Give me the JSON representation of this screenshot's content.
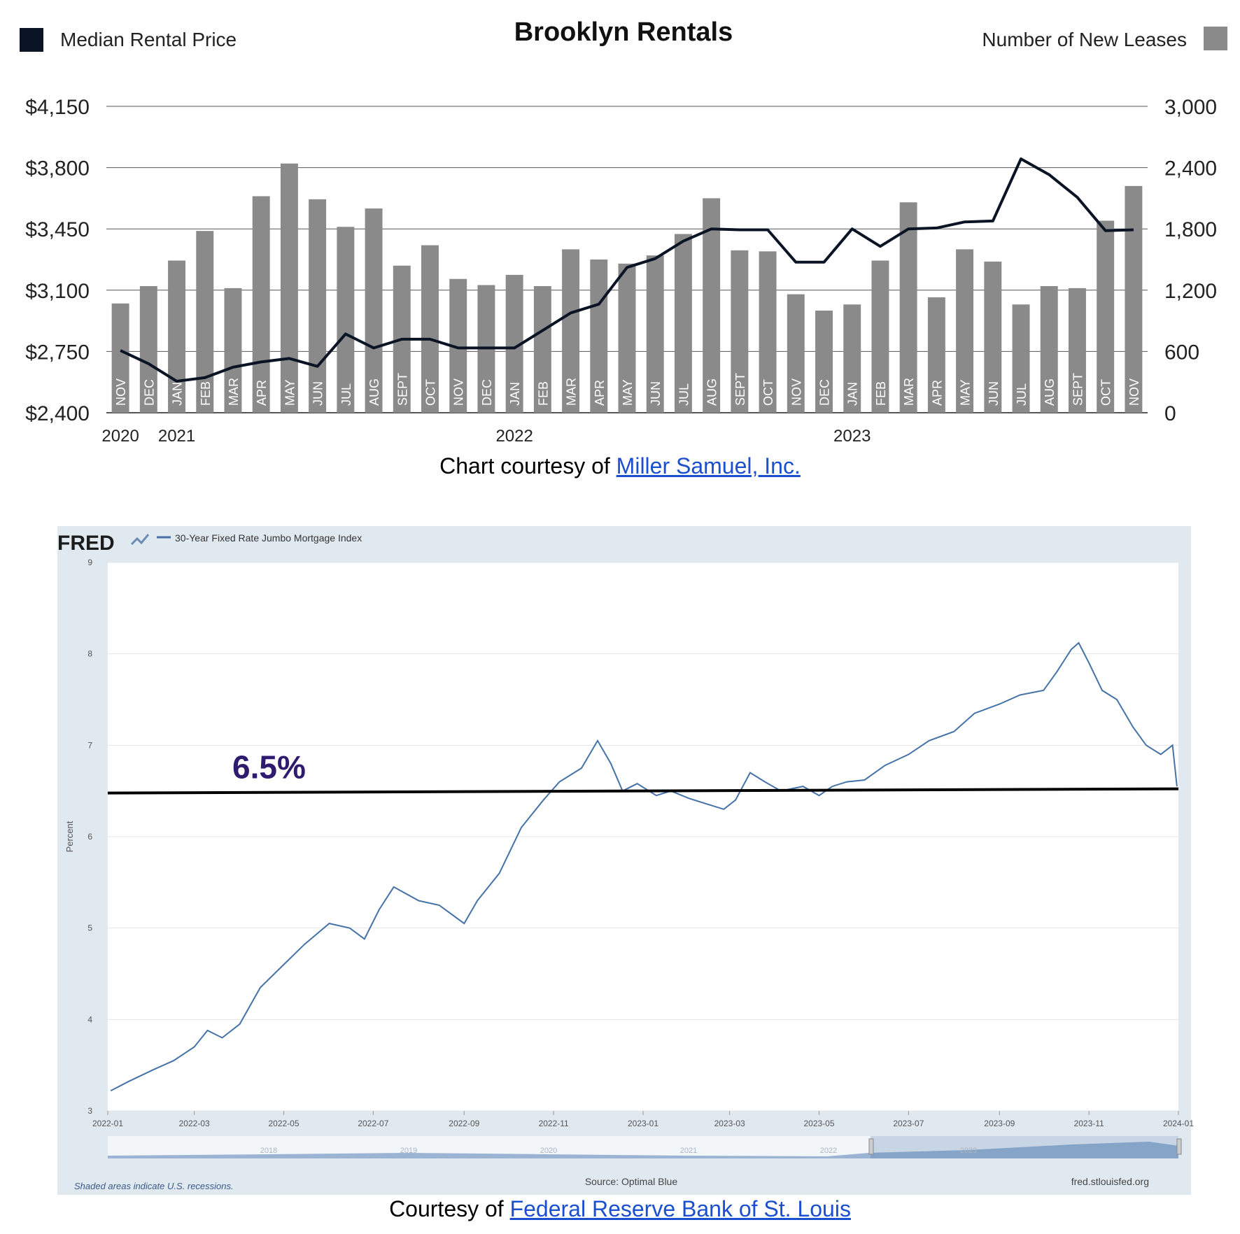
{
  "chart_data": [
    {
      "type": "bar",
      "title": "Brooklyn Rentals",
      "legend": [
        {
          "label": "Median Rental Price",
          "color": "#0b1424",
          "placement": "top-left"
        },
        {
          "label": "Number of New Leases",
          "color": "#8a8a8a",
          "placement": "top-right"
        }
      ],
      "categories": [
        "NOV",
        "DEC",
        "JAN",
        "FEB",
        "MAR",
        "APR",
        "MAY",
        "JUN",
        "JUL",
        "AUG",
        "SEPT",
        "OCT",
        "NOV",
        "DEC",
        "JAN",
        "FEB",
        "MAR",
        "APR",
        "MAY",
        "JUN",
        "JUL",
        "AUG",
        "SEPT",
        "OCT",
        "NOV",
        "DEC",
        "JAN",
        "FEB",
        "MAR",
        "APR",
        "MAY",
        "JUN",
        "JUL",
        "AUG",
        "SEPT",
        "OCT",
        "NOV"
      ],
      "year_labels": [
        {
          "label": "2020",
          "index": 0
        },
        {
          "label": "2021",
          "index": 2
        },
        {
          "label": "2022",
          "index": 14
        },
        {
          "label": "2023",
          "index": 26
        }
      ],
      "left_axis": {
        "ticks": [
          "$2,400",
          "$2,750",
          "$3,100",
          "$3,450",
          "$3,800",
          "$4,150"
        ],
        "min": 2400,
        "max": 4150
      },
      "right_axis": {
        "ticks": [
          "0",
          "600",
          "1,200",
          "1,800",
          "2,400",
          "3,000"
        ],
        "min": 0,
        "max": 3000
      },
      "grid": true,
      "series": [
        {
          "name": "Number of New Leases",
          "kind": "bar",
          "axis": "right",
          "color": "#8a8a8a",
          "values": [
            1070,
            1240,
            1490,
            1780,
            1220,
            2120,
            2440,
            2090,
            1820,
            2000,
            1440,
            1640,
            1310,
            1250,
            1350,
            1240,
            1600,
            1500,
            1460,
            1540,
            1750,
            2100,
            1590,
            1580,
            1160,
            1000,
            1060,
            1490,
            2060,
            1130,
            1600,
            1480,
            1060,
            1240,
            1220,
            1880,
            2220
          ]
        },
        {
          "name": "Median Rental Price",
          "kind": "line",
          "axis": "left",
          "color": "#0b1424",
          "values": [
            2755,
            2680,
            2580,
            2600,
            2660,
            2690,
            2710,
            2665,
            2850,
            2770,
            2820,
            2820,
            2770,
            2770,
            2770,
            2870,
            2970,
            3020,
            3230,
            3280,
            3380,
            3450,
            3445,
            3445,
            3260,
            3260,
            3450,
            3350,
            3450,
            3455,
            3490,
            3495,
            3850,
            3760,
            3630,
            3440,
            3445
          ]
        }
      ],
      "credit_prefix": "Chart courtesy of ",
      "credit_link": "Miller Samuel, Inc."
    },
    {
      "type": "line",
      "logo": "FRED",
      "logo_icon": "fred-chart-icon",
      "legend": [
        {
          "label": "30-Year Fixed Rate Jumbo Mortgage Index",
          "color": "#4572a7",
          "placement": "top-left"
        }
      ],
      "ylabel": "Percent",
      "y_ticks": [
        "3",
        "4",
        "5",
        "6",
        "7",
        "8",
        "9"
      ],
      "ylim": [
        3,
        9
      ],
      "x_ticks": [
        "2022-01",
        "2022-03",
        "2022-05",
        "2022-07",
        "2022-09",
        "2022-11",
        "2023-01",
        "2023-03",
        "2023-05",
        "2023-07",
        "2023-09",
        "2023-11",
        "2024-01"
      ],
      "xlim": [
        "2022-01-01",
        "2024-01-01"
      ],
      "series": [
        {
          "name": "30-Year Fixed Rate Jumbo Mortgage Index",
          "color": "#4572a7",
          "points": [
            [
              "2022-01-03",
              3.22
            ],
            [
              "2022-01-15",
              3.32
            ],
            [
              "2022-02-01",
              3.45
            ],
            [
              "2022-02-15",
              3.55
            ],
            [
              "2022-03-01",
              3.7
            ],
            [
              "2022-03-10",
              3.88
            ],
            [
              "2022-03-20",
              3.8
            ],
            [
              "2022-04-01",
              3.95
            ],
            [
              "2022-04-15",
              4.35
            ],
            [
              "2022-05-01",
              4.6
            ],
            [
              "2022-05-15",
              4.82
            ],
            [
              "2022-06-01",
              5.05
            ],
            [
              "2022-06-15",
              5.0
            ],
            [
              "2022-06-25",
              4.88
            ],
            [
              "2022-07-05",
              5.2
            ],
            [
              "2022-07-15",
              5.45
            ],
            [
              "2022-08-01",
              5.3
            ],
            [
              "2022-08-15",
              5.25
            ],
            [
              "2022-09-01",
              5.05
            ],
            [
              "2022-09-10",
              5.3
            ],
            [
              "2022-09-25",
              5.6
            ],
            [
              "2022-10-10",
              6.1
            ],
            [
              "2022-10-25",
              6.4
            ],
            [
              "2022-11-05",
              6.6
            ],
            [
              "2022-11-20",
              6.75
            ],
            [
              "2022-12-01",
              7.05
            ],
            [
              "2022-12-10",
              6.8
            ],
            [
              "2022-12-18",
              6.5
            ],
            [
              "2022-12-28",
              6.58
            ],
            [
              "2023-01-10",
              6.45
            ],
            [
              "2023-01-20",
              6.5
            ],
            [
              "2023-02-01",
              6.42
            ],
            [
              "2023-02-15",
              6.35
            ],
            [
              "2023-02-25",
              6.3
            ],
            [
              "2023-03-05",
              6.4
            ],
            [
              "2023-03-15",
              6.7
            ],
            [
              "2023-03-25",
              6.6
            ],
            [
              "2023-04-05",
              6.5
            ],
            [
              "2023-04-20",
              6.55
            ],
            [
              "2023-05-01",
              6.45
            ],
            [
              "2023-05-10",
              6.55
            ],
            [
              "2023-05-20",
              6.6
            ],
            [
              "2023-06-01",
              6.62
            ],
            [
              "2023-06-15",
              6.78
            ],
            [
              "2023-07-01",
              6.9
            ],
            [
              "2023-07-15",
              7.05
            ],
            [
              "2023-08-01",
              7.15
            ],
            [
              "2023-08-15",
              7.35
            ],
            [
              "2023-09-01",
              7.45
            ],
            [
              "2023-09-15",
              7.55
            ],
            [
              "2023-10-01",
              7.6
            ],
            [
              "2023-10-10",
              7.8
            ],
            [
              "2023-10-20",
              8.05
            ],
            [
              "2023-10-25",
              8.12
            ],
            [
              "2023-11-01",
              7.9
            ],
            [
              "2023-11-10",
              7.6
            ],
            [
              "2023-11-20",
              7.5
            ],
            [
              "2023-12-01",
              7.2
            ],
            [
              "2023-12-10",
              7.0
            ],
            [
              "2023-12-20",
              6.9
            ],
            [
              "2023-12-28",
              7.0
            ],
            [
              "2023-12-31",
              6.55
            ]
          ]
        }
      ],
      "reference_line": {
        "y": 6.5,
        "label": "6.5%",
        "color": "#000000",
        "label_color": "#2e1a6e"
      },
      "navigator_labels": [
        "2018",
        "2019",
        "2020",
        "2021",
        "2022",
        "2023"
      ],
      "footer_left": "Shaded areas indicate U.S. recessions.",
      "footer_center": "Source: Optimal Blue",
      "footer_right": "fred.stlouisfed.org",
      "credit_prefix": "Courtesy of ",
      "credit_link": "Federal Reserve Bank of St. Louis"
    }
  ]
}
